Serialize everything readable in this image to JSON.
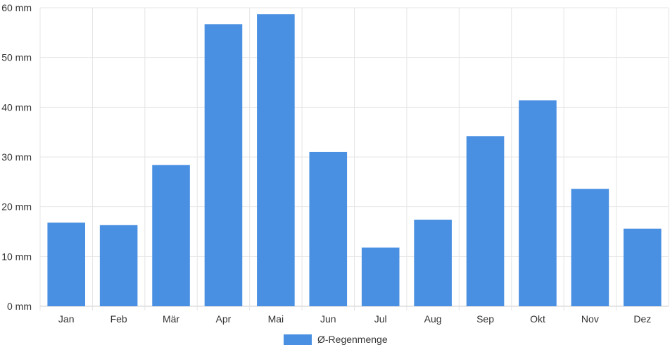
{
  "chart_data": {
    "type": "bar",
    "categories": [
      "Jan",
      "Feb",
      "Mär",
      "Apr",
      "Mai",
      "Jun",
      "Jul",
      "Aug",
      "Sep",
      "Okt",
      "Nov",
      "Dez"
    ],
    "series": [
      {
        "name": "Ø-Regenmenge",
        "values": [
          16.8,
          16.3,
          28.4,
          56.7,
          58.7,
          31.0,
          11.8,
          17.4,
          34.2,
          41.4,
          23.6,
          15.6
        ]
      }
    ],
    "ylim": [
      0,
      60
    ],
    "yticks": [
      0,
      10,
      20,
      30,
      40,
      50,
      60
    ],
    "y_tick_suffix": " mm",
    "grid": true,
    "legend_position": "bottom",
    "colors": {
      "bar": "#4a90e2",
      "grid": "#e5e5e5",
      "axis": "#cccccc",
      "text": "#333333"
    }
  }
}
